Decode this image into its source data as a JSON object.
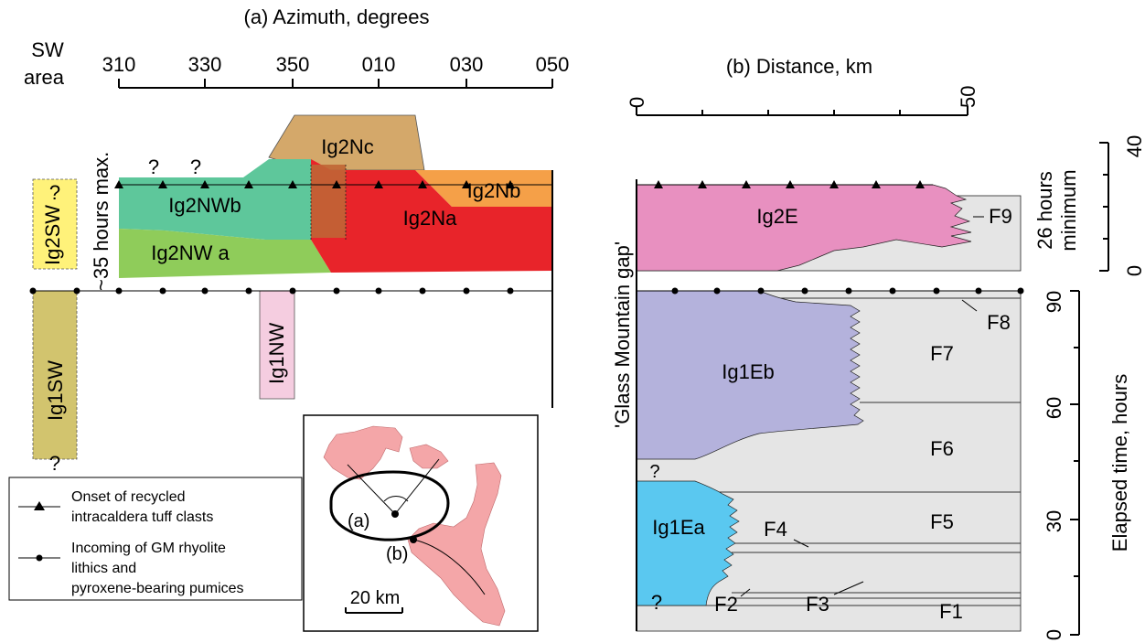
{
  "panel_a": {
    "title": "(a) Azimuth, degrees",
    "sw_label_1": "SW",
    "sw_label_2": "area",
    "azimuth_ticks": [
      "310",
      "330",
      "350",
      "010",
      "030",
      "050"
    ],
    "hours_max_label": "~35 hours max.",
    "units": [
      {
        "name": "Ig2Nc",
        "color": "#d4a86a"
      },
      {
        "name": "Ig2Nb",
        "color": "#f5a048"
      },
      {
        "name": "Ig2NWb",
        "color": "#5ec79b"
      },
      {
        "name": "Ig2Na",
        "color": "#e8242a"
      },
      {
        "name": "Ig2NW a",
        "color": "#8fcc5a"
      },
      {
        "name": "Ig2SW",
        "color": "#fff27a"
      },
      {
        "name": "Ig1SW",
        "color": "#d2c46e"
      },
      {
        "name": "Ig1NW",
        "color": "#f5cde0"
      }
    ],
    "question_marks": [
      "?",
      "?",
      "?",
      "?"
    ]
  },
  "legend": {
    "triangle_label_1": "Onset of recycled",
    "triangle_label_2": "intracaldera tuff clasts",
    "circle_label_1": "Incoming of GM rhyolite",
    "circle_label_2": "lithics and",
    "circle_label_3": "pyroxene-bearing pumices"
  },
  "map": {
    "label_a": "(a)",
    "label_b": "(b)",
    "scale_label": "20 km",
    "land_color": "#f4a6a8"
  },
  "panel_b": {
    "title": "(b) Distance, km",
    "distance_ticks": [
      "0",
      "50"
    ],
    "gap_label": "'Glass Mountain gap'",
    "upper_time_label_1": "26 hours",
    "upper_time_label_2": "minimum",
    "upper_time_ticks": [
      "0",
      "40"
    ],
    "elapsed_label": "Elapsed time, hours",
    "elapsed_ticks": [
      "0",
      "30",
      "60",
      "90"
    ],
    "units": [
      {
        "name": "Ig2E",
        "color": "#e890c0"
      },
      {
        "name": "Ig1Eb",
        "color": "#b4b2dc"
      },
      {
        "name": "Ig1Ea",
        "color": "#5ac8f0"
      }
    ],
    "background_color": "#e5e5e5",
    "flow_units": [
      "F1",
      "F2",
      "F3",
      "F4",
      "F5",
      "F6",
      "F7",
      "F8",
      "F9"
    ],
    "question_marks": [
      "?",
      "?"
    ]
  }
}
